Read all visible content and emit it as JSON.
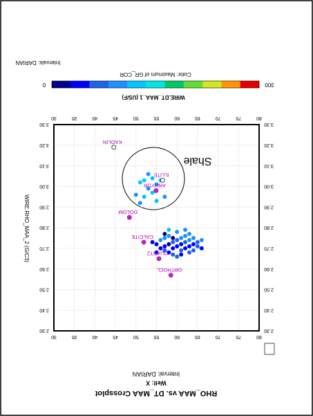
{
  "chart_data": {
    "type": "scatter",
    "title": "RHO_MAA vs. DT_MAA Crossplot",
    "subtitle_well": "Well: X",
    "subtitle_interval": "Interval: DARIAN",
    "intervals_note": "Intervals:  DARIAN",
    "color_label": "Color: Maximum of GR_COR",
    "xlabel": "WIRE.DT_MAA_1 (US/F)",
    "ylabel": "WIRE.RHO_MAA_2 (G/C3)",
    "shale_label": "Shale",
    "grid": true,
    "clim": [
      0,
      300
    ],
    "colorscale": [
      "#00008b",
      "#0000ff",
      "#1e64e6",
      "#1e90ff",
      "#00c8ff",
      "#00e5e5",
      "#00c864",
      "#64dc32",
      "#d2e61e",
      "#ff9600",
      "#e60000"
    ],
    "xlim": [
      30,
      80
    ],
    "xticks": [
      30,
      35,
      40,
      45,
      50,
      55,
      60,
      65,
      70,
      75,
      80
    ],
    "ylim": [
      2.3,
      3.3
    ],
    "yticks": [
      {
        "value": 2.3,
        "label": "2.30"
      },
      {
        "value": 2.4,
        "label": "2.40"
      },
      {
        "value": 2.5,
        "label": "2.50"
      },
      {
        "value": 2.6,
        "label": "2.60"
      },
      {
        "value": 2.7,
        "label": "2.70"
      },
      {
        "value": 2.8,
        "label": "2.80"
      },
      {
        "value": 2.9,
        "label": "2.90"
      },
      {
        "value": 3.0,
        "label": "3.00"
      },
      {
        "value": 3.1,
        "label": "3.10"
      },
      {
        "value": 3.2,
        "label": "3.20"
      },
      {
        "value": 3.3,
        "label": "3.30"
      }
    ],
    "points": {
      "x": [
        56,
        57,
        58,
        59,
        60,
        61,
        62,
        63,
        64,
        65,
        66,
        57,
        58,
        59,
        60,
        61,
        62,
        63,
        64,
        56,
        57,
        58,
        59,
        60,
        61,
        62,
        63,
        64,
        65,
        66,
        55,
        55,
        54,
        60,
        58,
        62,
        57,
        59,
        61,
        63,
        51,
        52,
        53,
        54,
        55,
        56,
        50,
        52,
        54,
        57,
        51,
        55,
        53
      ],
      "y": [
        2.7,
        2.71,
        2.72,
        2.7,
        2.71,
        2.72,
        2.7,
        2.71,
        2.72,
        2.71,
        2.7,
        2.69,
        2.68,
        2.73,
        2.74,
        2.69,
        2.73,
        2.68,
        2.69,
        2.74,
        2.75,
        2.76,
        2.67,
        2.66,
        2.75,
        2.76,
        2.74,
        2.75,
        2.73,
        2.74,
        2.72,
        2.68,
        2.73,
        2.78,
        2.79,
        2.79,
        2.77,
        2.75,
        2.67,
        2.77,
        3.02,
        3.03,
        2.99,
        3.04,
        3.01,
        3.03,
        2.96,
        2.95,
        2.97,
        2.95,
        2.92,
        2.93,
        3.06
      ],
      "values": [
        30,
        40,
        25,
        35,
        45,
        30,
        50,
        40,
        35,
        55,
        45,
        60,
        50,
        70,
        60,
        65,
        75,
        55,
        60,
        85,
        90,
        95,
        80,
        70,
        100,
        90,
        85,
        95,
        80,
        100,
        40,
        35,
        50,
        105,
        110,
        100,
        20,
        25,
        30,
        105,
        110,
        115,
        105,
        110,
        100,
        120,
        105,
        110,
        115,
        100,
        105,
        110,
        100
      ]
    },
    "minerals": [
      {
        "label": "KAOLIN",
        "x": 44.6,
        "y": 3.19,
        "marker": "open"
      },
      {
        "label": "ILLITE",
        "x": 56.5,
        "y": 3.03,
        "marker": "open"
      },
      {
        "label": "ANHYDR",
        "x": 54.9,
        "y": 2.98,
        "marker": "filled"
      },
      {
        "label": "DOLOM",
        "x": 48.4,
        "y": 2.85,
        "marker": "filled"
      },
      {
        "label": "CALCITE",
        "x": 51.9,
        "y": 2.73,
        "marker": "filled"
      },
      {
        "label": "QUARTZ",
        "x": 55.6,
        "y": 2.65,
        "marker": "filled"
      },
      {
        "label": "ORTHOCL",
        "x": 58.5,
        "y": 2.57,
        "marker": "filled"
      }
    ]
  }
}
